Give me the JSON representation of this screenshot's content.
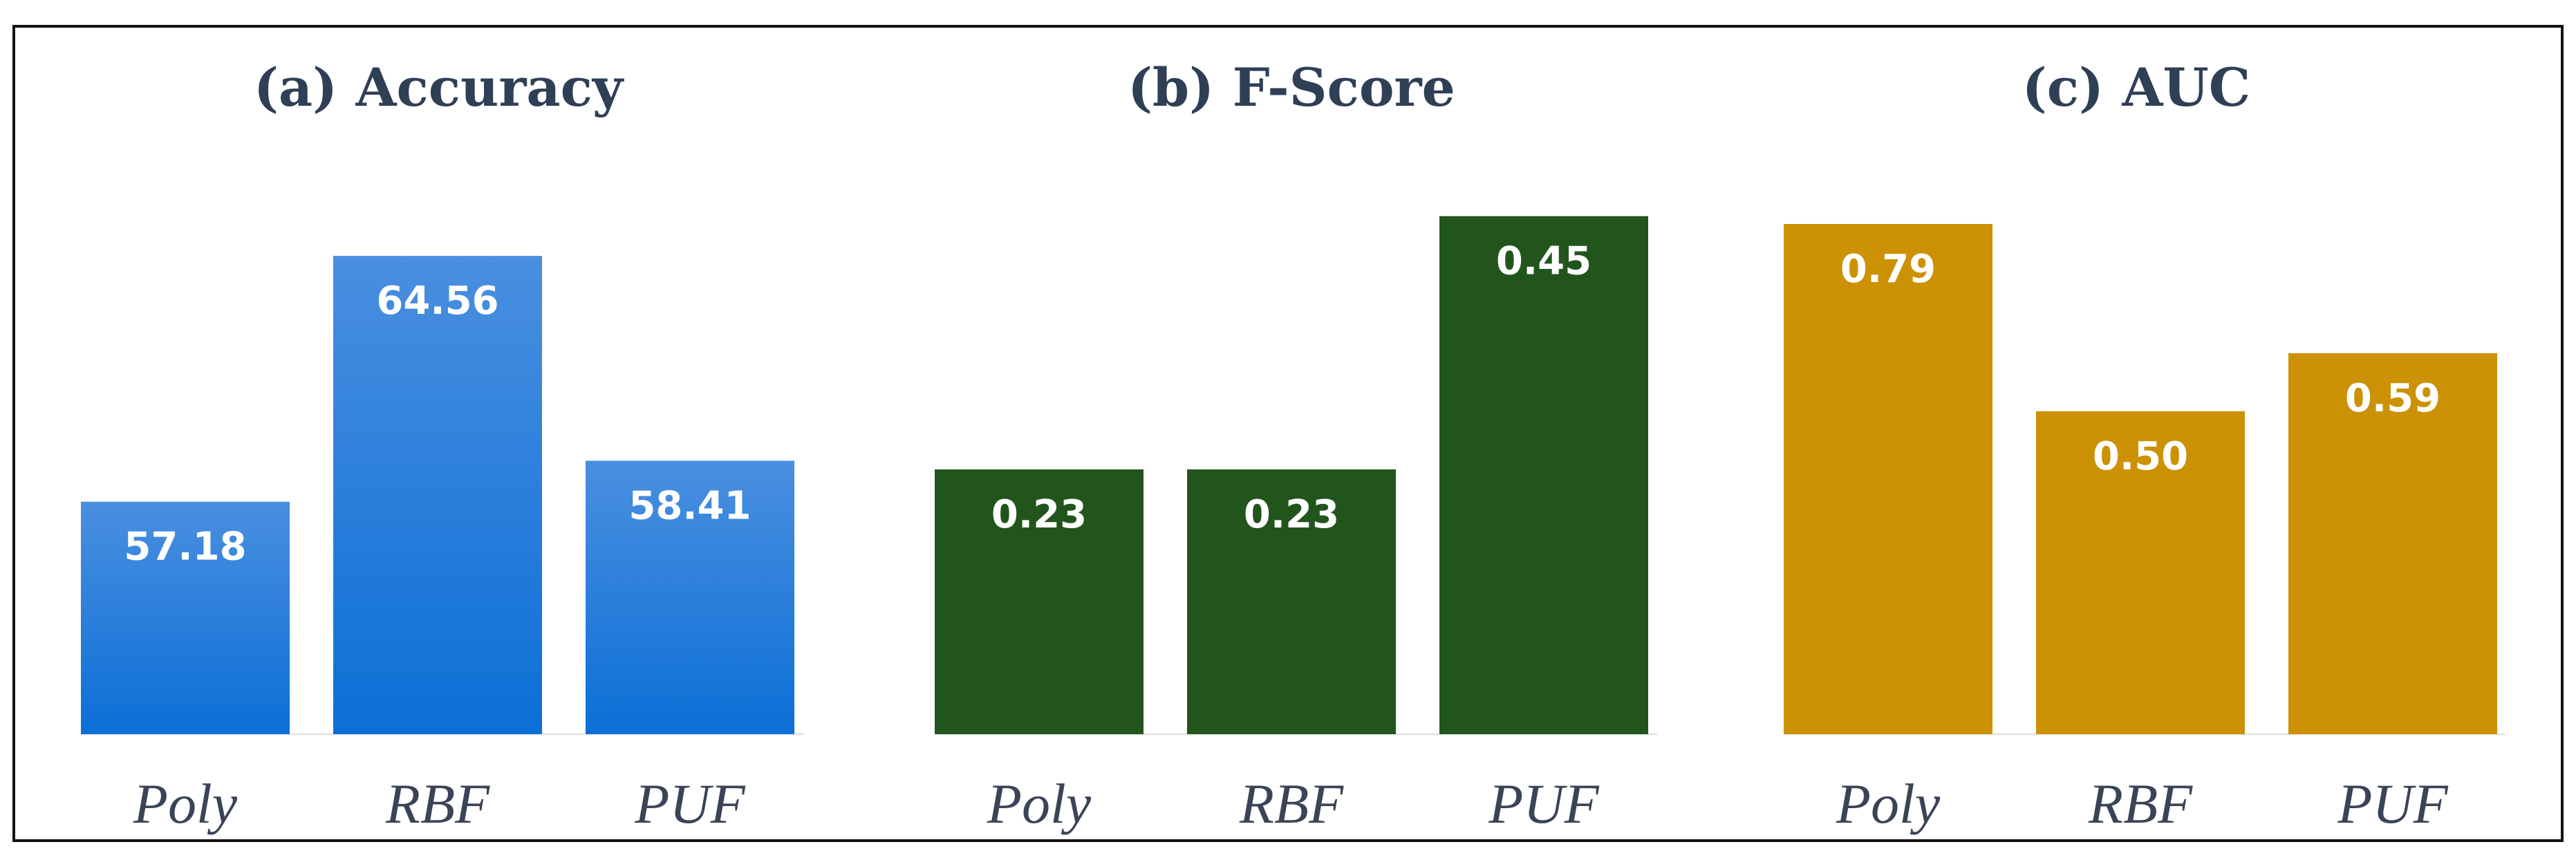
{
  "chart_data": [
    {
      "type": "bar",
      "title": "(a) Accuracy",
      "categories": [
        "Poly",
        "RBF",
        "PUF"
      ],
      "values": [
        57.18,
        64.56,
        58.41
      ],
      "value_labels": [
        "57.18",
        "64.56",
        "58.41"
      ],
      "ylim": [
        50.2,
        66.1
      ],
      "color": "#0b6fd6",
      "color_light": "#4a8fe0",
      "gradient": true
    },
    {
      "type": "bar",
      "title": "(b) F-Score",
      "categories": [
        "Poly",
        "RBF",
        "PUF"
      ],
      "values": [
        0.23,
        0.23,
        0.45
      ],
      "value_labels": [
        "0.23",
        "0.23",
        "0.45"
      ],
      "ylim": [
        0.0,
        0.46
      ],
      "color": "#21551c",
      "gradient": false
    },
    {
      "type": "bar",
      "title": "(c) AUC",
      "categories": [
        "Poly",
        "RBF",
        "PUF"
      ],
      "values": [
        0.79,
        0.5,
        0.59
      ],
      "value_labels": [
        "0.79",
        "0.50",
        "0.59"
      ],
      "ylim": [
        0.0,
        0.82
      ],
      "color": "#cc9104",
      "gradient": false
    }
  ]
}
